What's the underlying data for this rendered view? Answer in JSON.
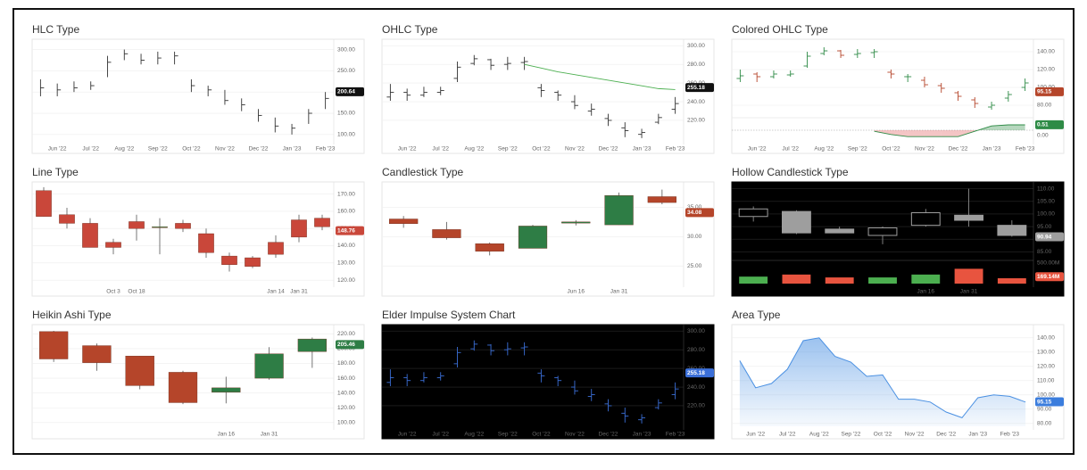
{
  "chart_data": [
    {
      "type": "hlc",
      "title": "HLC Type",
      "color": "#333333",
      "badge_color": "#111111",
      "categories": [
        null,
        "Jun '22",
        null,
        "Jul '22",
        null,
        "Aug '22",
        null,
        "Sep '22",
        null,
        "Oct '22",
        null,
        "Nov '22",
        null,
        "Dec '22",
        null,
        "Jan '23",
        null,
        "Feb '23"
      ],
      "high": [
        230,
        220,
        225,
        225,
        285,
        300,
        290,
        295,
        295,
        230,
        215,
        205,
        185,
        160,
        140,
        125,
        160,
        200
      ],
      "low": [
        190,
        190,
        200,
        205,
        235,
        275,
        265,
        265,
        265,
        200,
        190,
        170,
        155,
        130,
        105,
        100,
        125,
        160
      ],
      "close": [
        210,
        205,
        210,
        215,
        270,
        290,
        275,
        280,
        285,
        215,
        205,
        180,
        170,
        145,
        120,
        115,
        150,
        185
      ],
      "ylim": [
        85,
        320
      ],
      "yticks": [
        {
          "value": 100,
          "label": "100.00"
        },
        {
          "value": 150,
          "label": "150.00"
        },
        {
          "value": 200,
          "label": "200.00"
        },
        {
          "value": 250,
          "label": "250.00"
        },
        {
          "value": 300,
          "label": "300.00"
        }
      ],
      "last_value": 200.64,
      "grid": true
    },
    {
      "type": "ohlc",
      "title": "OHLC Type",
      "color": "#333333",
      "badge_color": "#111111",
      "ma_color": "#4caf50",
      "categories": [
        null,
        "Jun '22",
        null,
        "Jul '22",
        null,
        "Aug '22",
        null,
        "Sep '22",
        null,
        "Oct '22",
        null,
        "Nov '22",
        null,
        "Dec '22",
        null,
        "Jan '23",
        null,
        "Feb '23"
      ],
      "open": [
        245,
        250,
        247,
        250,
        265,
        281,
        285,
        280,
        282,
        255,
        250,
        240,
        230,
        222,
        212,
        205,
        218,
        232
      ],
      "high": [
        259,
        254,
        256,
        256,
        283,
        290,
        286,
        288,
        288,
        259,
        252,
        247,
        238,
        227,
        218,
        211,
        227,
        245
      ],
      "low": [
        241,
        241,
        245,
        247,
        261,
        279,
        274,
        274,
        274,
        245,
        241,
        232,
        225,
        214,
        202,
        201,
        216,
        227
      ],
      "close": [
        250,
        247,
        250,
        252,
        277,
        286,
        279,
        281,
        283,
        252,
        247,
        236,
        232,
        220,
        209,
        207,
        223,
        238
      ],
      "ma": [
        null,
        null,
        null,
        null,
        null,
        null,
        null,
        null,
        280,
        276,
        272,
        269,
        266,
        263,
        260,
        257,
        254,
        253
      ],
      "ylim": [
        198,
        305
      ],
      "yticks": [
        {
          "value": 220,
          "label": "220.00"
        },
        {
          "value": 240,
          "label": "240.00"
        },
        {
          "value": 260,
          "label": "260.00"
        },
        {
          "value": 280,
          "label": "280.00"
        },
        {
          "value": 300,
          "label": "300.00"
        }
      ],
      "last_value": 255.18,
      "grid": true
    },
    {
      "type": "ohlc",
      "title": "Colored OHLC Type",
      "up_color": "#2e8b46",
      "down_color": "#b5452a",
      "badge_color": "#b5452a",
      "categories": [
        null,
        "Jun '22",
        null,
        "Jul '22",
        null,
        "Aug '22",
        null,
        "Sep '22",
        null,
        "Oct '22",
        null,
        "Nov '22",
        null,
        "Dec '22",
        null,
        "Jan '23",
        null,
        "Feb '23"
      ],
      "open": [
        110,
        115,
        112,
        114,
        124,
        138,
        141,
        137,
        139,
        117,
        112,
        108,
        102,
        94,
        86,
        78,
        88,
        100
      ],
      "high": [
        120,
        117,
        119,
        119,
        140,
        145,
        142,
        143,
        143,
        120,
        115,
        112,
        105,
        96,
        89,
        84,
        96,
        110
      ],
      "low": [
        106,
        106,
        110,
        112,
        122,
        136,
        133,
        133,
        133,
        110,
        106,
        100,
        94,
        85,
        77,
        75,
        84,
        96
      ],
      "close": [
        113,
        112,
        115,
        115,
        135,
        141,
        136,
        138,
        140,
        115,
        112,
        103,
        99,
        90,
        82,
        80,
        92,
        105
      ],
      "ylim": [
        70,
        152
      ],
      "yticks": [
        {
          "value": 80,
          "label": "80.00"
        },
        {
          "value": 100,
          "label": "100.00"
        },
        {
          "value": 120,
          "label": "120.00"
        },
        {
          "value": 140,
          "label": "140.00"
        }
      ],
      "last_value": 95.15,
      "grid": true,
      "indicator": {
        "values": [
          null,
          null,
          null,
          null,
          null,
          null,
          null,
          null,
          -0.1,
          -0.4,
          -0.6,
          -0.6,
          -0.6,
          -0.6,
          -0.1,
          0.4,
          0.5,
          0.5
        ],
        "ylim": [
          -1,
          1
        ],
        "yticks": [
          {
            "value": 0,
            "label": "0.00"
          }
        ],
        "last_value": 0.51,
        "up_color": "#2e8b46",
        "down_color": "#e05a5a"
      }
    },
    {
      "type": "candlestick",
      "title": "Line Type",
      "up_color": "#2e8b46",
      "down_color": "#c9473a",
      "badge_color": "#c9473a",
      "categories": [
        null,
        null,
        null,
        "Oct 3",
        "Oct 18",
        null,
        null,
        null,
        null,
        null,
        "Jan 14",
        "Jan 31",
        null
      ],
      "open": [
        172,
        158,
        153,
        142,
        154,
        151,
        153,
        147,
        134,
        133,
        142,
        155,
        156
      ],
      "high": [
        174,
        162,
        156,
        144,
        158,
        156,
        155,
        150,
        136,
        134,
        146,
        158,
        158
      ],
      "low": [
        157,
        150,
        139,
        135,
        143,
        135,
        148,
        133,
        125,
        127,
        133,
        142,
        149
      ],
      "close": [
        157,
        153,
        139,
        139,
        150,
        151,
        150,
        136,
        129,
        128,
        135,
        145,
        151
      ],
      "ylim": [
        118,
        176
      ],
      "yticks": [
        {
          "value": 120,
          "label": "120.00"
        },
        {
          "value": 130,
          "label": "130.00"
        },
        {
          "value": 140,
          "label": "140.00"
        },
        {
          "value": 150,
          "label": "150.00"
        },
        {
          "value": 160,
          "label": "160.00"
        },
        {
          "value": 170,
          "label": "170.00"
        }
      ],
      "last_value": 148.76,
      "grid": true
    },
    {
      "type": "candlestick",
      "title": "Candlestick Type",
      "up_color": "#2e7d45",
      "down_color": "#b5452a",
      "badge_color": "#b5452a",
      "categories": [
        null,
        null,
        null,
        null,
        "Jun 16",
        "Jan 31",
        null
      ],
      "open": [
        33,
        31.2,
        28.8,
        28,
        32.3,
        32,
        36.8
      ],
      "high": [
        33.5,
        32.5,
        29,
        32,
        32.8,
        37.5,
        38
      ],
      "low": [
        31.5,
        29.5,
        26.8,
        28,
        31.9,
        32,
        35.5
      ],
      "close": [
        32.2,
        29.8,
        27.5,
        31.8,
        32.5,
        37,
        35.8
      ],
      "ylim": [
        22,
        39
      ],
      "yticks": [
        {
          "value": 25,
          "label": "25.00"
        },
        {
          "value": 30,
          "label": "30.00"
        },
        {
          "value": 35,
          "label": "35.00"
        }
      ],
      "last_value": 34.08,
      "grid": true
    },
    {
      "type": "candlestick",
      "title": "Hollow Candlestick Type",
      "hollow": true,
      "dark": true,
      "up_color": "#9e9e9e",
      "down_color": "#9e9e9e",
      "badge_color": "#9e9e9e",
      "categories": [
        null,
        null,
        null,
        null,
        "Jan 16",
        "Jan 31",
        null
      ],
      "open": [
        99,
        101,
        94,
        91.5,
        95.5,
        99.5,
        95.5
      ],
      "high": [
        103,
        101.5,
        95,
        95,
        102,
        110,
        97.5
      ],
      "low": [
        97,
        92,
        92.5,
        88,
        95,
        95,
        91
      ],
      "close": [
        102,
        92.5,
        92.5,
        94.5,
        100.5,
        97.5,
        91.5
      ],
      "ylim": [
        83,
        112
      ],
      "yticks": [
        {
          "value": 85,
          "label": "85.00"
        },
        {
          "value": 90,
          "label": "90.00"
        },
        {
          "value": 95,
          "label": "95.00"
        },
        {
          "value": 100,
          "label": "100.00"
        },
        {
          "value": 105,
          "label": "105.00"
        },
        {
          "value": 110,
          "label": "110.00"
        }
      ],
      "last_value": 90.94,
      "grid": true,
      "volume": {
        "values": [
          170,
          220,
          150,
          150,
          220,
          360,
          130
        ],
        "colors": [
          "#4caf50",
          "#e8543f",
          "#e8543f",
          "#4caf50",
          "#4caf50",
          "#e8543f",
          "#e8543f"
        ],
        "ylim": [
          0,
          520
        ],
        "yticks": [
          {
            "value": 500,
            "label": "500.00M"
          }
        ],
        "last_value": 169.14,
        "last_label": "169.14M",
        "badge_color": "#e8543f"
      }
    },
    {
      "type": "candlestick",
      "title": "Heikin Ashi Type",
      "up_color": "#2e7d45",
      "down_color": "#b5452a",
      "badge_color": "#2e7d45",
      "categories": [
        null,
        null,
        null,
        null,
        "Jan 16",
        "Jan 31",
        null
      ],
      "open": [
        223,
        204,
        190,
        168,
        141,
        160,
        196
      ],
      "high": [
        224,
        207,
        190,
        170,
        162,
        202,
        215
      ],
      "low": [
        182,
        170,
        145,
        125,
        126,
        158,
        174
      ],
      "close": [
        186,
        181,
        150,
        127,
        147,
        193,
        213
      ],
      "ylim": [
        95,
        230
      ],
      "yticks": [
        {
          "value": 100,
          "label": "100.00"
        },
        {
          "value": 120,
          "label": "120.00"
        },
        {
          "value": 140,
          "label": "140.00"
        },
        {
          "value": 160,
          "label": "160.00"
        },
        {
          "value": 180,
          "label": "180.00"
        },
        {
          "value": 200,
          "label": "200.00"
        },
        {
          "value": 220,
          "label": "220.00"
        }
      ],
      "last_value": 205.46,
      "grid": true
    },
    {
      "type": "ohlc",
      "title": "Elder Impulse System Chart",
      "dark": true,
      "color": "#3b6fd8",
      "badge_color": "#3b6fd8",
      "categories": [
        null,
        "Jun '22",
        null,
        "Jul '22",
        null,
        "Aug '22",
        null,
        "Sep '22",
        null,
        "Oct '22",
        null,
        "Nov '22",
        null,
        "Dec '22",
        null,
        "Jan '23",
        null,
        "Feb '23"
      ],
      "open": [
        245,
        250,
        247,
        250,
        265,
        281,
        285,
        280,
        282,
        255,
        250,
        240,
        230,
        222,
        212,
        205,
        218,
        232
      ],
      "high": [
        259,
        254,
        256,
        256,
        283,
        290,
        286,
        288,
        288,
        259,
        252,
        247,
        238,
        227,
        218,
        211,
        227,
        245
      ],
      "low": [
        241,
        241,
        245,
        247,
        261,
        279,
        274,
        274,
        274,
        245,
        241,
        232,
        225,
        214,
        202,
        201,
        216,
        227
      ],
      "close": [
        250,
        247,
        250,
        252,
        277,
        286,
        279,
        281,
        283,
        252,
        247,
        236,
        232,
        220,
        209,
        207,
        223,
        238
      ],
      "ylim": [
        198,
        305
      ],
      "yticks": [
        {
          "value": 220,
          "label": "220.00"
        },
        {
          "value": 240,
          "label": "240.00"
        },
        {
          "value": 260,
          "label": "260.00"
        },
        {
          "value": 280,
          "label": "280.00"
        },
        {
          "value": 300,
          "label": "300.00"
        }
      ],
      "last_value": 255.18,
      "grid": true
    },
    {
      "type": "area",
      "title": "Area Type",
      "color": "#4a90e2",
      "badge_color": "#3b7ddd",
      "categories": [
        null,
        "Jun '22",
        null,
        "Jul '22",
        null,
        "Aug '22",
        null,
        "Sep '22",
        null,
        "Oct '22",
        null,
        "Nov '22",
        null,
        "Dec '22",
        null,
        "Jan '23",
        null,
        "Feb '23",
        null
      ],
      "values": [
        124,
        105,
        108,
        118,
        138,
        140,
        127,
        123,
        113,
        114,
        97,
        97,
        95,
        88,
        84,
        98,
        100,
        99,
        95
      ],
      "ylim": [
        78,
        148
      ],
      "yticks": [
        {
          "value": 80,
          "label": "80.00"
        },
        {
          "value": 90,
          "label": "90.00"
        },
        {
          "value": 100,
          "label": "100.00"
        },
        {
          "value": 110,
          "label": "110.00"
        },
        {
          "value": 120,
          "label": "120.00"
        },
        {
          "value": 130,
          "label": "130.00"
        },
        {
          "value": 140,
          "label": "140.00"
        }
      ],
      "last_value": 95.15,
      "grid": true
    }
  ]
}
